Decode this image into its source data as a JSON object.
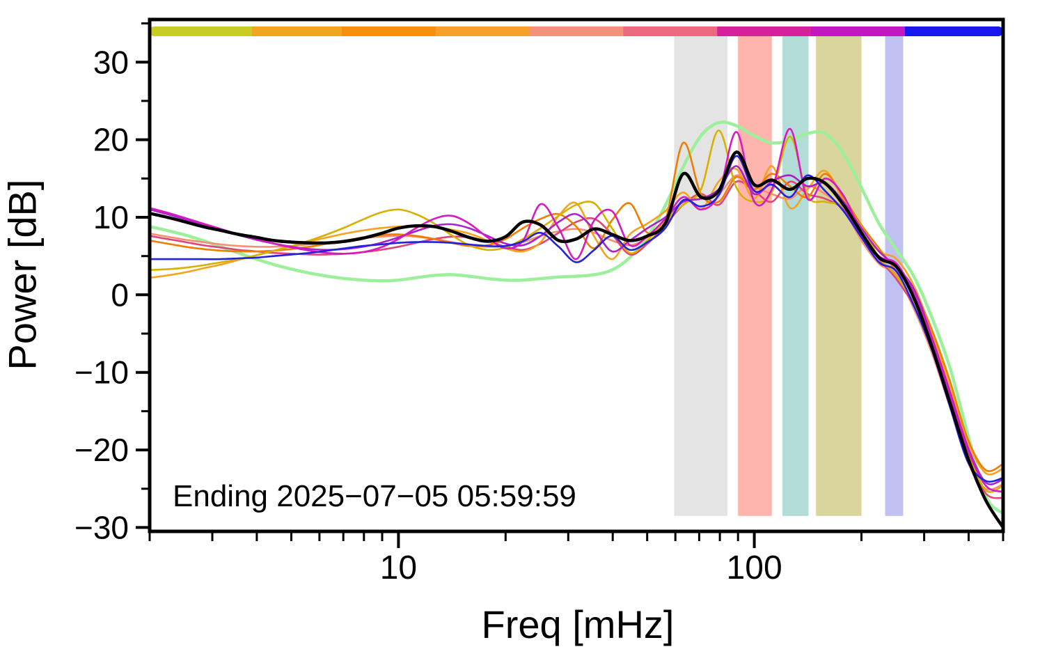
{
  "chart_data": {
    "type": "line",
    "title": "",
    "xlabel": "Freq [mHz]",
    "ylabel": "Power [dB]",
    "annotation": "Ending 2025−07−05 05:59:59",
    "x_scale": "log",
    "grid": "off",
    "legend": "none",
    "xlim": [
      2,
      500
    ],
    "ylim": [
      -30.5,
      35.5
    ],
    "x_major_ticks": [
      10,
      100
    ],
    "x_major_tick_labels": [
      "10",
      "100"
    ],
    "x_minor_ticks": [
      2,
      3,
      4,
      5,
      6,
      7,
      8,
      9,
      20,
      30,
      40,
      50,
      60,
      70,
      80,
      90,
      200,
      300,
      400,
      500
    ],
    "y_major_ticks": [
      -30,
      -20,
      -10,
      0,
      10,
      20,
      30
    ],
    "y_major_tick_labels": [
      "−30",
      "−20",
      "−10",
      "0",
      "10",
      "20",
      "30"
    ],
    "y_minor_ticks": [
      -25,
      -15,
      -5,
      5,
      15,
      25,
      35
    ],
    "band_y": [
      -28.5,
      33.5
    ],
    "bands": [
      {
        "name": "gray",
        "color": "#e4e4e4",
        "x0": 59.5,
        "x1": 84
      },
      {
        "name": "red",
        "color": "#ffb4ad",
        "x0": 90,
        "x1": 112
      },
      {
        "name": "teal",
        "color": "#b2dcd8",
        "x0": 120,
        "x1": 142
      },
      {
        "name": "olive",
        "color": "#d9d59c",
        "x0": 149,
        "x1": 200
      },
      {
        "name": "lavender",
        "color": "#c0c0f2",
        "x0": 233,
        "x1": 262
      }
    ],
    "colorbar": {
      "segments": [
        {
          "color": "#c9cc22",
          "f0": 0.0,
          "f1": 0.12
        },
        {
          "color": "#f2a51f",
          "f0": 0.12,
          "f1": 0.225
        },
        {
          "color": "#f78e0c",
          "f0": 0.225,
          "f1": 0.335
        },
        {
          "color": "#f9a02c",
          "f0": 0.335,
          "f1": 0.445
        },
        {
          "color": "#f4917c",
          "f0": 0.445,
          "f1": 0.555
        },
        {
          "color": "#ec6a80",
          "f0": 0.555,
          "f1": 0.665
        },
        {
          "color": "#d6219c",
          "f0": 0.665,
          "f1": 0.775
        },
        {
          "color": "#c217c2",
          "f0": 0.775,
          "f1": 0.885
        },
        {
          "color": "#1717ee",
          "f0": 0.885,
          "f1": 1.0
        }
      ]
    },
    "x": [
      2.0,
      2.24,
      2.52,
      2.82,
      3.17,
      3.55,
      3.99,
      4.47,
      5.02,
      5.63,
      6.31,
      7.08,
      7.94,
      8.91,
      10.0,
      11.2,
      12.6,
      14.1,
      15.8,
      17.8,
      20.0,
      22.4,
      25.1,
      28.2,
      31.6,
      35.5,
      39.8,
      44.7,
      50.1,
      56.2,
      63.1,
      70.8,
      79.4,
      89.1,
      100,
      112,
      126,
      141,
      158,
      178,
      200,
      224,
      251,
      282,
      316,
      355,
      398,
      447,
      500
    ],
    "series": [
      {
        "name": "lightgreen",
        "color": "#9cf09c",
        "width": 4.5,
        "values": [
          8.8,
          8.3,
          7.7,
          7.0,
          6.2,
          5.4,
          4.6,
          3.9,
          3.3,
          2.8,
          2.4,
          2.1,
          1.9,
          1.8,
          1.9,
          2.2,
          2.5,
          2.6,
          2.4,
          2.1,
          1.9,
          1.9,
          2.1,
          2.3,
          2.4,
          2.6,
          3.2,
          4.8,
          7.5,
          11.5,
          16.5,
          20.5,
          22.2,
          21.8,
          20.5,
          19.6,
          19.9,
          20.8,
          20.8,
          18.2,
          13.8,
          9.2,
          5.8,
          2.2,
          -3.0,
          -9.5,
          -18.0,
          -26.0,
          -28.2
        ]
      },
      {
        "name": "salmon",
        "color": "#fa8f6f",
        "width": 2.6,
        "values": [
          7.9,
          7.5,
          7.1,
          6.8,
          6.5,
          6.3,
          6.2,
          6.2,
          6.3,
          6.5,
          6.7,
          7.0,
          7.3,
          7.5,
          7.6,
          7.5,
          7.2,
          6.8,
          6.4,
          6.2,
          6.3,
          6.8,
          7.6,
          8.2,
          8.5,
          8.0,
          7.0,
          6.4,
          7.4,
          9.4,
          12.0,
          12.4,
          13.0,
          15.4,
          14.0,
          13.0,
          12.4,
          14.0,
          13.0,
          11.0,
          7.0,
          4.0,
          2.6,
          -2.0,
          -7.6,
          -14.6,
          -21.6,
          -25.0,
          -24.4
        ]
      },
      {
        "name": "crimson",
        "color": "#e0447a",
        "width": 2.6,
        "values": [
          7.6,
          7.2,
          6.8,
          6.4,
          6.1,
          5.8,
          5.6,
          5.4,
          5.3,
          5.2,
          5.2,
          5.3,
          5.5,
          5.8,
          6.2,
          6.7,
          7.2,
          7.5,
          7.4,
          6.9,
          6.2,
          5.8,
          6.6,
          8.0,
          9.4,
          9.8,
          7.8,
          5.2,
          6.6,
          9.0,
          11.6,
          13.0,
          11.6,
          14.6,
          13.4,
          12.0,
          14.6,
          13.0,
          12.4,
          11.0,
          7.6,
          4.6,
          2.0,
          -1.6,
          -6.6,
          -13.6,
          -20.6,
          -25.6,
          -26.2
        ]
      },
      {
        "name": "orange",
        "color": "#f6a21c",
        "width": 2.6,
        "values": [
          2.2,
          2.5,
          2.9,
          3.4,
          3.9,
          4.5,
          5.1,
          5.7,
          6.3,
          6.9,
          7.4,
          7.9,
          8.3,
          8.6,
          8.8,
          8.8,
          8.7,
          8.4,
          7.9,
          7.0,
          6.0,
          5.6,
          6.8,
          10.2,
          11.8,
          7.5,
          4.6,
          7.8,
          9.2,
          10.8,
          13.2,
          11.0,
          14.6,
          16.2,
          12.4,
          16.6,
          11.2,
          13.6,
          16.0,
          12.2,
          8.6,
          5.6,
          4.6,
          1.0,
          -5.0,
          -12.0,
          -19.0,
          -23.0,
          -22.4
        ]
      },
      {
        "name": "darkorange",
        "color": "#ef7d00",
        "width": 2.6,
        "values": [
          7.0,
          6.6,
          6.2,
          5.9,
          5.7,
          5.6,
          5.6,
          5.7,
          5.9,
          6.2,
          6.6,
          7.0,
          7.4,
          7.7,
          7.8,
          7.6,
          7.2,
          6.7,
          6.3,
          6.4,
          7.2,
          8.6,
          9.8,
          10.4,
          8.8,
          6.0,
          9.6,
          11.8,
          8.0,
          9.6,
          19.6,
          13.0,
          12.0,
          15.2,
          13.6,
          15.6,
          14.0,
          12.6,
          15.6,
          12.6,
          9.0,
          6.0,
          3.0,
          0.4,
          -4.6,
          -11.2,
          -18.6,
          -22.6,
          -21.8
        ]
      },
      {
        "name": "goldenrod",
        "color": "#d7b000",
        "width": 2.6,
        "values": [
          3.2,
          3.3,
          3.5,
          3.8,
          4.2,
          4.6,
          5.1,
          5.7,
          6.3,
          7.0,
          7.8,
          8.7,
          9.7,
          10.6,
          11.0,
          10.4,
          9.2,
          7.7,
          6.4,
          5.8,
          6.1,
          7.2,
          8.6,
          10.2,
          11.6,
          11.8,
          8.6,
          5.4,
          7.0,
          9.6,
          11.6,
          13.6,
          21.2,
          13.8,
          12.0,
          13.2,
          20.4,
          12.8,
          12.0,
          11.4,
          8.8,
          4.8,
          2.4,
          -1.2,
          -6.2,
          -13.2,
          -20.2,
          -25.2,
          -24.6
        ]
      },
      {
        "name": "purple",
        "color": "#aa22cc",
        "width": 2.6,
        "values": [
          11.0,
          10.4,
          9.7,
          9.0,
          8.3,
          7.7,
          7.1,
          6.6,
          6.2,
          5.9,
          5.8,
          5.9,
          6.2,
          6.7,
          7.4,
          8.2,
          8.9,
          9.1,
          8.6,
          7.6,
          6.6,
          6.4,
          7.6,
          9.4,
          10.4,
          8.4,
          5.6,
          7.0,
          8.6,
          10.0,
          12.0,
          12.4,
          13.6,
          16.6,
          13.0,
          14.6,
          15.4,
          14.0,
          14.4,
          12.0,
          8.6,
          5.6,
          3.6,
          0.6,
          -5.6,
          -12.6,
          -19.6,
          -24.2,
          -23.8
        ]
      },
      {
        "name": "magenta",
        "color": "#d619c3",
        "width": 2.6,
        "values": [
          11.2,
          10.6,
          9.9,
          9.2,
          8.5,
          7.8,
          7.2,
          6.6,
          6.1,
          5.7,
          5.4,
          5.3,
          5.5,
          6.1,
          7.2,
          8.6,
          9.8,
          10.2,
          9.2,
          7.4,
          6.0,
          7.0,
          11.7,
          8.6,
          4.6,
          9.6,
          10.8,
          6.4,
          7.6,
          9.8,
          12.6,
          11.0,
          13.0,
          21.0,
          12.0,
          13.6,
          21.4,
          12.4,
          15.0,
          12.8,
          8.0,
          5.0,
          4.0,
          0.0,
          -6.0,
          -13.0,
          -20.0,
          -24.6,
          -25.4
        ]
      },
      {
        "name": "blue",
        "color": "#2222dd",
        "width": 2.6,
        "values": [
          4.6,
          4.6,
          4.6,
          4.6,
          4.6,
          4.7,
          4.8,
          5.0,
          5.2,
          5.4,
          5.7,
          6.0,
          6.3,
          6.5,
          6.7,
          6.8,
          6.8,
          6.7,
          6.5,
          6.3,
          6.3,
          6.9,
          8.0,
          6.2,
          4.2,
          5.8,
          7.6,
          5.8,
          6.8,
          8.6,
          12.2,
          11.4,
          12.8,
          17.9,
          13.4,
          14.2,
          12.6,
          15.4,
          13.4,
          10.8,
          7.4,
          4.2,
          3.0,
          -1.6,
          -7.2,
          -14.5,
          -21.5,
          -24.0,
          -23.6
        ]
      },
      {
        "name": "mean-black",
        "color": "#000000",
        "width": 4.5,
        "values": [
          10.5,
          10.0,
          9.4,
          8.8,
          8.3,
          7.8,
          7.4,
          7.0,
          6.8,
          6.7,
          6.7,
          6.9,
          7.3,
          7.9,
          8.6,
          8.9,
          8.8,
          8.2,
          7.4,
          6.9,
          7.5,
          9.4,
          9.0,
          7.0,
          7.2,
          8.5,
          7.8,
          7.0,
          7.6,
          9.2,
          15.6,
          12.6,
          13.4,
          18.4,
          14.2,
          14.8,
          13.6,
          15.0,
          14.4,
          11.6,
          8.0,
          4.8,
          3.6,
          -0.6,
          -6.8,
          -14.0,
          -21.0,
          -26.5,
          -30.0
        ]
      }
    ]
  }
}
